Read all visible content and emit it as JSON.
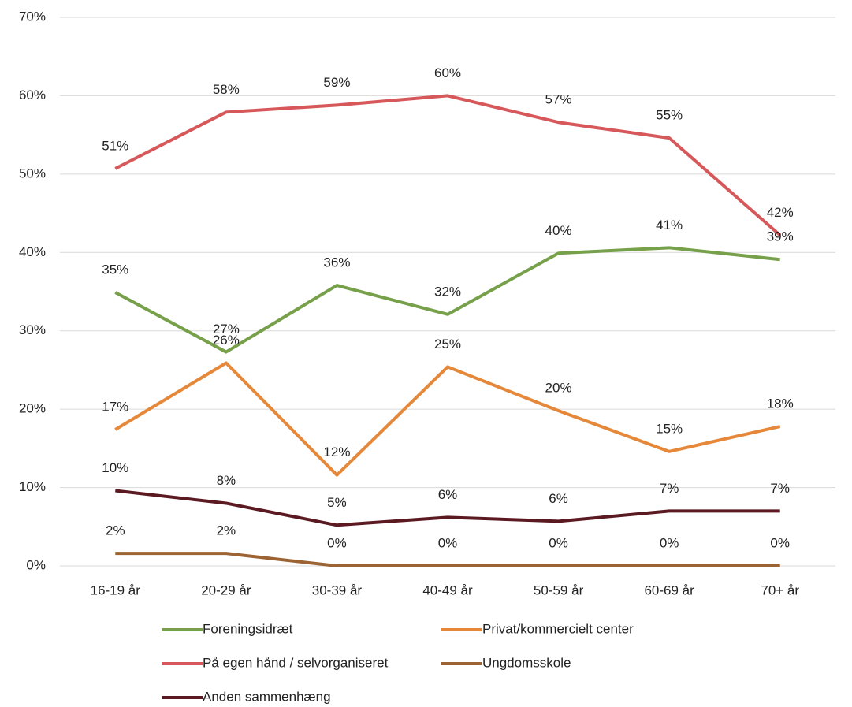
{
  "chart_data": {
    "type": "line",
    "categories": [
      "16-19 år",
      "20-29 år",
      "30-39 år",
      "40-49 år",
      "50-59 år",
      "60-69 år",
      "70+ år"
    ],
    "series": [
      {
        "name": "Foreningsidræt",
        "color": "#77a04a",
        "values": [
          34.9,
          27.3,
          35.8,
          32.1,
          39.9,
          40.6,
          39.1
        ],
        "value_labels": [
          "35%",
          "27%",
          "36%",
          "32%",
          "40%",
          "41%",
          "39%"
        ]
      },
      {
        "name": "Privat/kommercielt center",
        "color": "#e5883a",
        "values": [
          17.4,
          25.9,
          11.6,
          25.4,
          19.8,
          14.6,
          17.8
        ],
        "value_labels": [
          "17%",
          "26%",
          "12%",
          "25%",
          "20%",
          "15%",
          "18%"
        ]
      },
      {
        "name": "På egen hånd / selvorganiseret",
        "color": "#d6585a",
        "values": [
          50.7,
          57.9,
          58.8,
          60.0,
          56.6,
          54.6,
          42.2
        ],
        "value_labels": [
          "51%",
          "58%",
          "59%",
          "60%",
          "57%",
          "55%",
          "42%"
        ]
      },
      {
        "name": "Ungdomsskole",
        "color": "#9c6434",
        "values": [
          1.6,
          1.6,
          0,
          0,
          0,
          0,
          0
        ],
        "value_labels": [
          "2%",
          "2%",
          "0%",
          "0%",
          "0%",
          "0%",
          "0%"
        ]
      },
      {
        "name": "Anden sammenhæng",
        "color": "#5b1a22",
        "values": [
          9.6,
          8.0,
          5.2,
          6.2,
          5.7,
          7.0,
          7.0
        ],
        "value_labels": [
          "10%",
          "8%",
          "5%",
          "6%",
          "6%",
          "7%",
          "7%"
        ]
      }
    ],
    "ylim": [
      0,
      70
    ],
    "yticks": [
      {
        "value": 0,
        "label": "0%"
      },
      {
        "value": 10,
        "label": "10%"
      },
      {
        "value": 20,
        "label": "20%"
      },
      {
        "value": 30,
        "label": "30%"
      },
      {
        "value": 40,
        "label": "40%"
      },
      {
        "value": 50,
        "label": "50%"
      },
      {
        "value": 60,
        "label": "60%"
      },
      {
        "value": 70,
        "label": "70%"
      }
    ],
    "grid": true
  }
}
